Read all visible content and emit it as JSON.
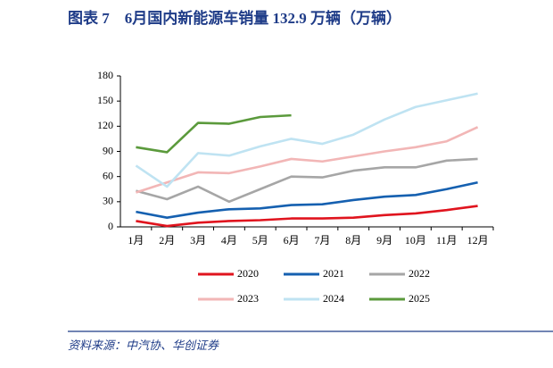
{
  "chart_data": {
    "type": "line",
    "title": "图表 7　6月国内新能源车销量 132.9 万辆（万辆）",
    "source": "资料来源：中汽协、华创证券",
    "categories": [
      "1月",
      "2月",
      "3月",
      "4月",
      "5月",
      "6月",
      "7月",
      "8月",
      "9月",
      "10月",
      "11月",
      "12月"
    ],
    "ylim": [
      0,
      180
    ],
    "yticks": [
      0,
      30,
      60,
      90,
      120,
      150,
      180
    ],
    "series": [
      {
        "name": "2020",
        "color": "#e0141e",
        "values": [
          7,
          1,
          5,
          7,
          8,
          10,
          10,
          11,
          14,
          16,
          20,
          25
        ]
      },
      {
        "name": "2021",
        "color": "#1560b0",
        "values": [
          18,
          11,
          17,
          21,
          22,
          26,
          27,
          32,
          36,
          38,
          45,
          53
        ]
      },
      {
        "name": "2022",
        "color": "#a6a6a6",
        "values": [
          43,
          33,
          48,
          30,
          45,
          60,
          59,
          67,
          71,
          71,
          79,
          81
        ]
      },
      {
        "name": "2023",
        "color": "#f2b6b6",
        "values": [
          41,
          53,
          65,
          64,
          72,
          81,
          78,
          84,
          90,
          95,
          102,
          119
        ]
      },
      {
        "name": "2024",
        "color": "#bfe3f2",
        "values": [
          73,
          48,
          88,
          85,
          96,
          105,
          99,
          110,
          128,
          143,
          151,
          159
        ]
      },
      {
        "name": "2025",
        "color": "#5b9a3c",
        "values": [
          95,
          89,
          124,
          123,
          131,
          133,
          null,
          null,
          null,
          null,
          null,
          null
        ]
      }
    ]
  }
}
